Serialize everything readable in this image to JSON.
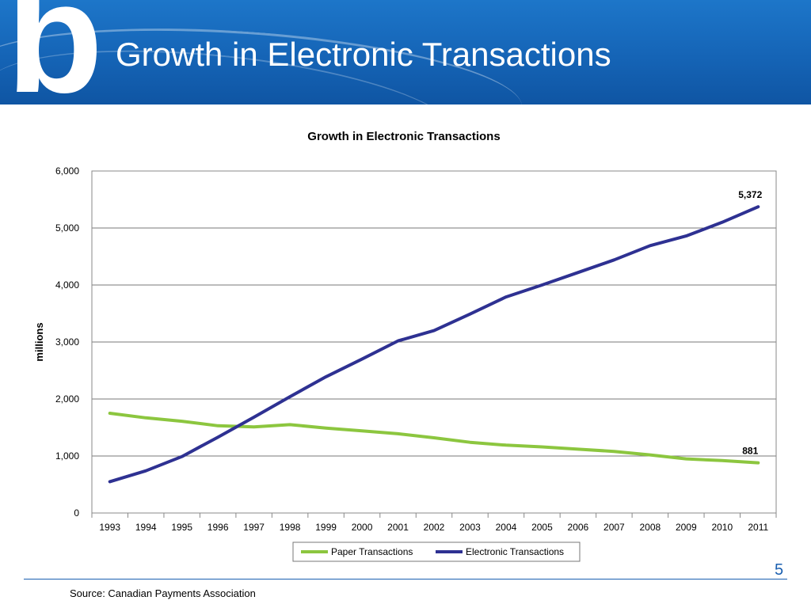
{
  "slide": {
    "logo_letter": "b",
    "title": "Growth in Electronic Transactions",
    "page_number": "5",
    "source": "Source:  Canadian Payments Association"
  },
  "chart_data": {
    "type": "line",
    "title": "Growth in Electronic Transactions",
    "xlabel": "",
    "ylabel": "millions",
    "ylim": [
      0,
      6000
    ],
    "yticks": [
      0,
      1000,
      2000,
      3000,
      4000,
      5000,
      6000
    ],
    "ytick_labels": [
      "0",
      "1,000",
      "2,000",
      "3,000",
      "4,000",
      "5,000",
      "6,000"
    ],
    "categories": [
      "1993",
      "1994",
      "1995",
      "1996",
      "1997",
      "1998",
      "1999",
      "2000",
      "2001",
      "2002",
      "2003",
      "2004",
      "2005",
      "2006",
      "2007",
      "2008",
      "2009",
      "2010",
      "2011"
    ],
    "grid": true,
    "legend": "bottom",
    "series": [
      {
        "name": "Paper Transactions",
        "color": "#8cc63f",
        "values": [
          1750,
          1670,
          1610,
          1530,
          1510,
          1550,
          1490,
          1440,
          1390,
          1320,
          1240,
          1190,
          1160,
          1120,
          1080,
          1020,
          950,
          920,
          881
        ],
        "end_label": "881"
      },
      {
        "name": "Electronic Transactions",
        "color": "#2e3192",
        "values": [
          550,
          740,
          990,
          1330,
          1680,
          2040,
          2390,
          2700,
          3020,
          3200,
          3490,
          3790,
          4000,
          4220,
          4440,
          4690,
          4860,
          5100,
          5372
        ],
        "end_label": "5,372"
      }
    ]
  }
}
